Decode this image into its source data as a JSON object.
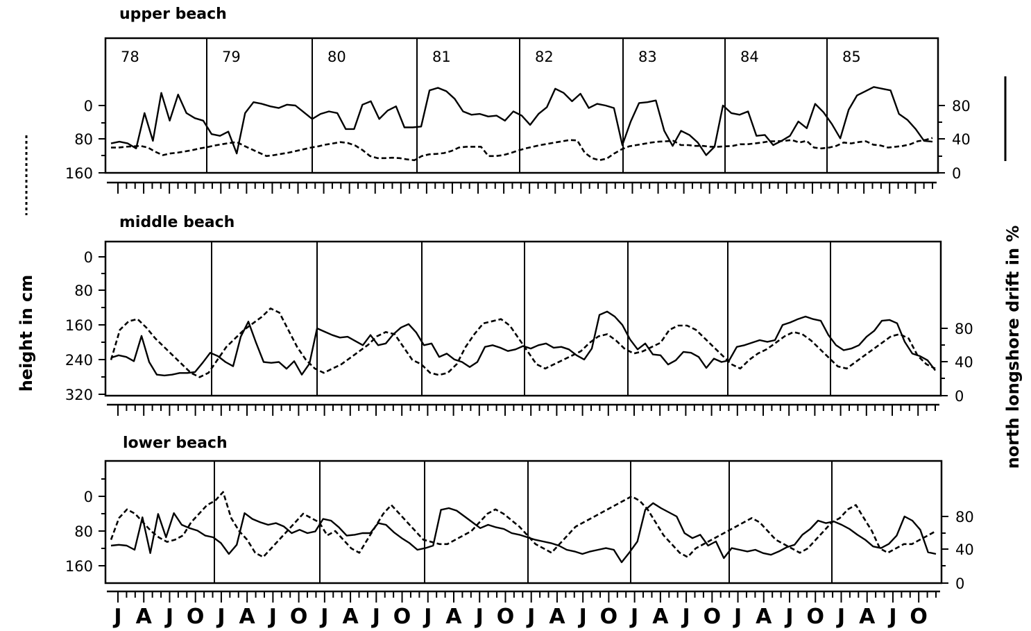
{
  "chart_data": {
    "type": "line",
    "left_axis_label": "height in cm",
    "right_axis_label": "north longshore drift in %",
    "left_axis_legend_style": "dashed",
    "right_axis_legend_style": "solid",
    "years": [
      "78",
      "79",
      "80",
      "81",
      "82",
      "83",
      "84",
      "85"
    ],
    "month_labels": [
      "J",
      "A",
      "J",
      "O",
      "J",
      "A",
      "J",
      "O",
      "J",
      "A",
      "J",
      "O",
      "J",
      "A",
      "J",
      "O",
      "J",
      "A",
      "J",
      "O",
      "J",
      "A",
      "J",
      "O",
      "J",
      "A",
      "J",
      "O",
      "J",
      "A",
      "J",
      "O"
    ],
    "panels": [
      {
        "title": "upper beach",
        "left_ticks": [
          "0",
          "80",
          "160"
        ],
        "left_range": [
          0,
          160
        ],
        "right_ticks": [
          "0",
          "40",
          "80"
        ],
        "right_range": [
          0,
          80
        ],
        "series": [
          {
            "style": "dashed",
            "axis": "left",
            "values": [
              100,
              100,
              98,
              97,
              96,
              100,
              110,
              118,
              114,
              112,
              109,
              106,
              102,
              99,
              95,
              92,
              89,
              87,
              96,
              104,
              112,
              120,
              118,
              115,
              112,
              108,
              104,
              100,
              97,
              93,
              90,
              87,
              89,
              95,
              106,
              120,
              125,
              125,
              124,
              125,
              128,
              130,
              120,
              116,
              115,
              113,
              108,
              100,
              98,
              98,
              98,
              120,
              120,
              118,
              113,
              107,
              102,
              98,
              94,
              91,
              88,
              85,
              82,
              83,
              112,
              125,
              130,
              126,
              114,
              104,
              97,
              94,
              91,
              88,
              86,
              85,
              84,
              94,
              94,
              96,
              96,
              98,
              98,
              97,
              96,
              92,
              92,
              90,
              88,
              85,
              85,
              84,
              82,
              88,
              84,
              100,
              102,
              100,
              96,
              88,
              90,
              87,
              85,
              93,
              95,
              100,
              98,
              96,
              92,
              85,
              82,
              77
            ],
            "dashes": true
          },
          {
            "style": "solid",
            "axis": "right",
            "values": [
              35,
              37,
              35,
              29,
              71,
              38,
              95,
              62,
              93,
              71,
              65,
              62,
              46,
              44,
              49,
              23,
              71,
              84,
              82,
              79,
              77,
              81,
              80,
              72,
              64,
              70,
              73,
              71,
              52,
              52,
              81,
              85,
              64,
              74,
              79,
              54,
              54,
              55,
              98,
              101,
              97,
              88,
              73,
              69,
              70,
              67,
              68,
              62,
              73,
              68,
              57,
              70,
              78,
              100,
              95,
              85,
              94,
              77,
              82,
              80,
              77,
              33,
              61,
              83,
              84,
              86,
              50,
              32,
              50,
              45,
              36,
              21,
              31,
              80,
              71,
              69,
              73,
              44,
              45,
              33,
              38,
              44,
              61,
              53,
              82,
              72,
              58,
              41,
              75,
              92,
              97,
              102,
              100,
              98,
              70,
              63,
              52,
              38,
              37
            ],
            "dashes": false
          }
        ]
      },
      {
        "title": "middle beach",
        "left_ticks": [
          "0",
          "80",
          "160",
          "240",
          "320"
        ],
        "left_range": [
          0,
          320
        ],
        "right_ticks": [
          "0",
          "40",
          "80"
        ],
        "right_range": [
          0,
          80
        ],
        "series": [
          {
            "style": "dashed",
            "axis": "left",
            "values": [
              240,
              170,
              150,
              145,
              165,
              190,
              210,
              230,
              250,
              270,
              280,
              270,
              240,
              210,
              190,
              170,
              155,
              140,
              120,
              130,
              170,
              210,
              240,
              260,
              270,
              260,
              250,
              235,
              220,
              205,
              185,
              175,
              180,
              210,
              240,
              250,
              270,
              275,
              270,
              250,
              210,
              180,
              155,
              150,
              145,
              160,
              190,
              220,
              250,
              260,
              250,
              240,
              230,
              220,
              200,
              185,
              180,
              195,
              215,
              225,
              220,
              210,
              200,
              170,
              160,
              160,
              170,
              190,
              210,
              230,
              250,
              260,
              240,
              225,
              215,
              200,
              185,
              175,
              180,
              195,
              215,
              235,
              255,
              260,
              245,
              230,
              215,
              200,
              185,
              180,
              190,
              230,
              250,
              260
            ],
            "dashes": true
          },
          {
            "style": "solid",
            "axis": "right",
            "values": [
              45,
              48,
              46,
              41,
              71,
              40,
              25,
              24,
              25,
              27,
              27,
              28,
              39,
              51,
              47,
              40,
              35,
              70,
              88,
              63,
              40,
              39,
              40,
              32,
              41,
              25,
              38,
              80,
              76,
              72,
              69,
              70,
              65,
              60,
              72,
              60,
              62,
              73,
              81,
              85,
              75,
              60,
              62,
              46,
              50,
              43,
              40,
              34,
              40,
              58,
              60,
              57,
              53,
              55,
              59,
              56,
              60,
              62,
              57,
              58,
              55,
              48,
              43,
              56,
              96,
              100,
              94,
              84,
              67,
              55,
              62,
              49,
              48,
              37,
              42,
              52,
              51,
              46,
              33,
              44,
              40,
              42,
              58,
              60,
              63,
              66,
              64,
              66,
              84,
              87,
              91,
              94,
              91,
              89,
              72,
              60,
              54,
              56,
              60,
              70,
              77,
              89,
              90,
              86,
              64,
              50,
              47,
              42,
              30
            ],
            "dashes": false
          }
        ]
      },
      {
        "title": "lower beach",
        "left_ticks": [
          "0",
          "80",
          "160"
        ],
        "left_range": [
          0,
          160
        ],
        "right_ticks": [
          "0",
          "40",
          "80"
        ],
        "right_range": [
          0,
          80
        ],
        "series": [
          {
            "style": "dashed",
            "axis": "left",
            "values": [
              100,
              50,
              30,
              40,
              60,
              80,
              95,
              105,
              100,
              90,
              60,
              40,
              20,
              10,
              -10,
              50,
              80,
              100,
              130,
              140,
              120,
              100,
              80,
              60,
              40,
              50,
              60,
              90,
              80,
              100,
              120,
              130,
              100,
              70,
              40,
              20,
              40,
              60,
              80,
              100,
              105,
              110,
              110,
              100,
              90,
              80,
              60,
              40,
              30,
              40,
              55,
              70,
              90,
              110,
              120,
              130,
              110,
              90,
              70,
              60,
              50,
              40,
              30,
              20,
              10,
              0,
              10,
              30,
              60,
              90,
              110,
              130,
              140,
              120,
              110,
              100,
              90,
              80,
              70,
              60,
              50,
              60,
              80,
              100,
              110,
              120,
              130,
              120,
              100,
              80,
              60,
              50,
              30,
              20,
              50,
              80,
              120,
              130,
              120,
              110,
              110,
              100,
              90,
              80
            ],
            "dashes": true
          },
          {
            "style": "solid",
            "axis": "right",
            "values": [
              45,
              46,
              45,
              40,
              79,
              36,
              83,
              55,
              84,
              70,
              66,
              63,
              57,
              55,
              48,
              35,
              46,
              84,
              77,
              73,
              70,
              72,
              68,
              60,
              64,
              60,
              62,
              77,
              75,
              67,
              57,
              58,
              60,
              60,
              72,
              70,
              61,
              54,
              48,
              40,
              42,
              45,
              88,
              90,
              87,
              80,
              73,
              66,
              70,
              67,
              65,
              60,
              58,
              55,
              52,
              50,
              48,
              45,
              40,
              38,
              35,
              38,
              40,
              42,
              40,
              25,
              37,
              50,
              88,
              96,
              90,
              85,
              80,
              60,
              54,
              58,
              45,
              50,
              30,
              42,
              40,
              38,
              40,
              36,
              34,
              38,
              43,
              46,
              58,
              65,
              75,
              72,
              74,
              70,
              65,
              58,
              52,
              44,
              42,
              47,
              57,
              80,
              75,
              64,
              37,
              35
            ],
            "dashes": false
          }
        ]
      }
    ]
  }
}
